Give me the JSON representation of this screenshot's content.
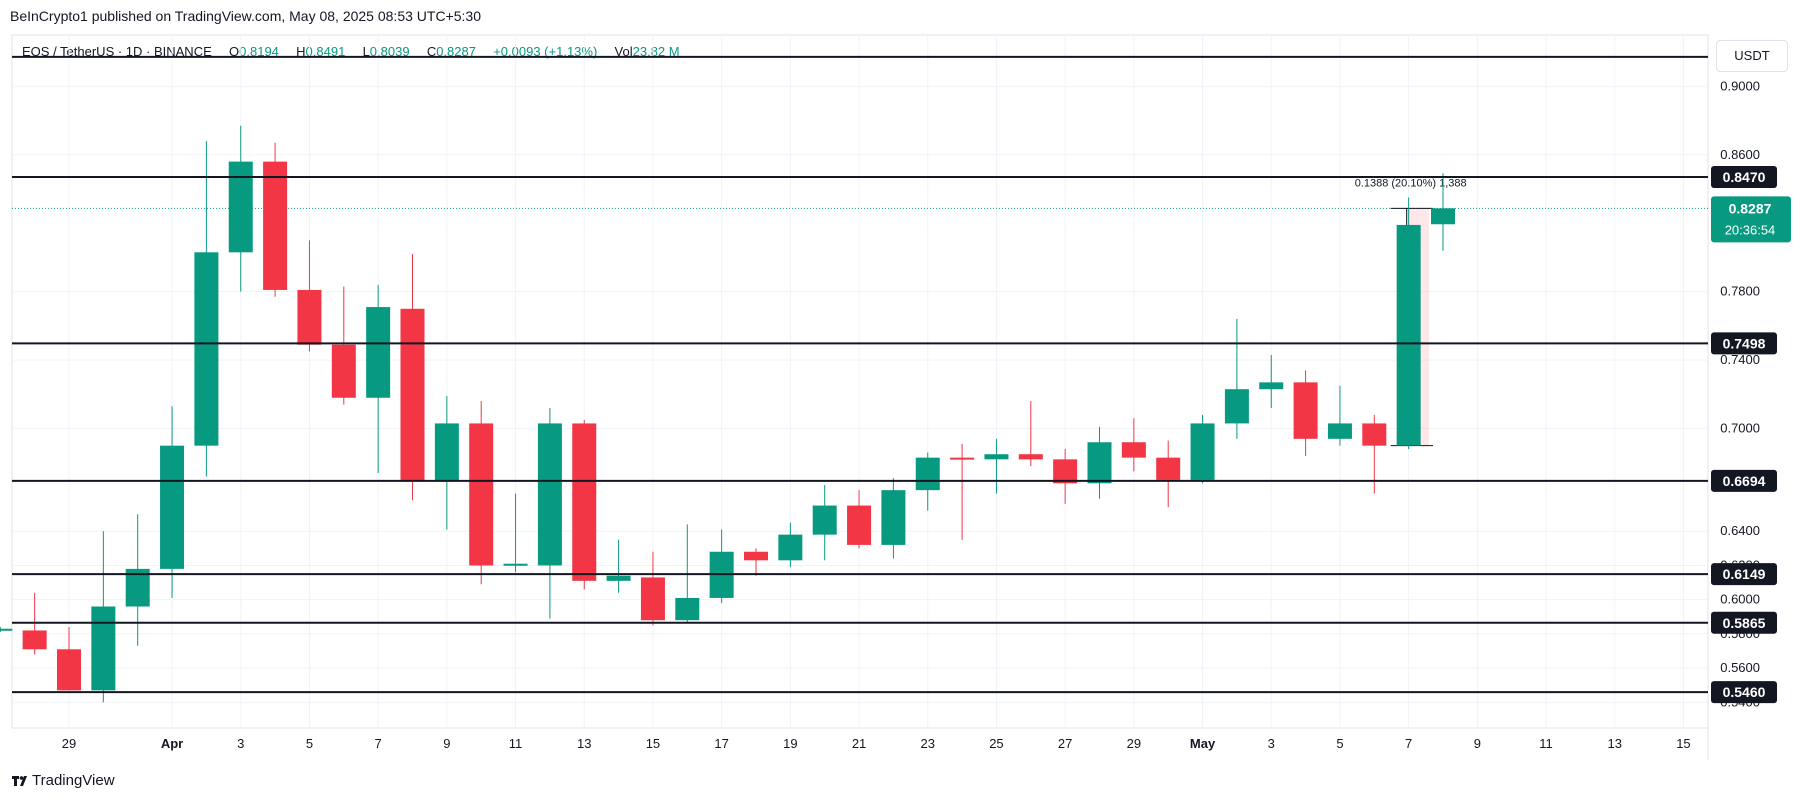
{
  "header": {
    "published": "BeInCrypto1 published on TradingView.com, May 08, 2025 08:53 UTC+5:30"
  },
  "symbol": {
    "pair": "EOS / TetherUS · 1D · BINANCE",
    "o_label": "O",
    "o": "0.8194",
    "h_label": "H",
    "h": "0.8491",
    "l_label": "L",
    "l": "0.8039",
    "c_label": "C",
    "c": "0.8287",
    "change": "+0.0093 (+1.13%)",
    "vol_label": "Vol",
    "vol": "23.82 M"
  },
  "currency": "USDT",
  "footer": {
    "brand": "TradingView"
  },
  "colors": {
    "up": "#089981",
    "down": "#f23645",
    "grid": "#f0f3fa",
    "line": "#131722"
  },
  "chart_data": {
    "type": "candlestick",
    "ylim": [
      0.525,
      0.93
    ],
    "y_ticks": [
      "0.9000",
      "0.8600",
      "0.7800",
      "0.7400",
      "0.7000",
      "0.6400",
      "0.6200",
      "0.6000",
      "0.5800",
      "0.5600",
      "0.5400"
    ],
    "x_ticks": [
      {
        "date": "2025-03-29",
        "label": "29"
      },
      {
        "date": "2025-04-01",
        "label": "Apr"
      },
      {
        "date": "2025-04-03",
        "label": "3"
      },
      {
        "date": "2025-04-05",
        "label": "5"
      },
      {
        "date": "2025-04-07",
        "label": "7"
      },
      {
        "date": "2025-04-09",
        "label": "9"
      },
      {
        "date": "2025-04-11",
        "label": "11"
      },
      {
        "date": "2025-04-13",
        "label": "13"
      },
      {
        "date": "2025-04-15",
        "label": "15"
      },
      {
        "date": "2025-04-17",
        "label": "17"
      },
      {
        "date": "2025-04-19",
        "label": "19"
      },
      {
        "date": "2025-04-21",
        "label": "21"
      },
      {
        "date": "2025-04-23",
        "label": "23"
      },
      {
        "date": "2025-04-25",
        "label": "25"
      },
      {
        "date": "2025-04-27",
        "label": "27"
      },
      {
        "date": "2025-04-29",
        "label": "29"
      },
      {
        "date": "2025-05-01",
        "label": "May"
      },
      {
        "date": "2025-05-03",
        "label": "3"
      },
      {
        "date": "2025-05-05",
        "label": "5"
      },
      {
        "date": "2025-05-07",
        "label": "7"
      },
      {
        "date": "2025-05-09",
        "label": "9"
      },
      {
        "date": "2025-05-11",
        "label": "11"
      },
      {
        "date": "2025-05-13",
        "label": "13"
      },
      {
        "date": "2025-05-15",
        "label": "15"
      }
    ],
    "candles": [
      {
        "date": "2025-03-27",
        "o": 0.582,
        "h": 0.584,
        "l": 0.581,
        "c": 0.583
      },
      {
        "date": "2025-03-28",
        "o": 0.582,
        "h": 0.604,
        "l": 0.568,
        "c": 0.571
      },
      {
        "date": "2025-03-29",
        "o": 0.571,
        "h": 0.584,
        "l": 0.547,
        "c": 0.547
      },
      {
        "date": "2025-03-30",
        "o": 0.547,
        "h": 0.64,
        "l": 0.54,
        "c": 0.596
      },
      {
        "date": "2025-03-31",
        "o": 0.596,
        "h": 0.65,
        "l": 0.573,
        "c": 0.618
      },
      {
        "date": "2025-04-01",
        "o": 0.618,
        "h": 0.713,
        "l": 0.601,
        "c": 0.69
      },
      {
        "date": "2025-04-02",
        "o": 0.69,
        "h": 0.868,
        "l": 0.672,
        "c": 0.803
      },
      {
        "date": "2025-04-03",
        "o": 0.803,
        "h": 0.877,
        "l": 0.78,
        "c": 0.856
      },
      {
        "date": "2025-04-04",
        "o": 0.856,
        "h": 0.867,
        "l": 0.777,
        "c": 0.781
      },
      {
        "date": "2025-04-05",
        "o": 0.781,
        "h": 0.81,
        "l": 0.745,
        "c": 0.749
      },
      {
        "date": "2025-04-06",
        "o": 0.749,
        "h": 0.783,
        "l": 0.714,
        "c": 0.718
      },
      {
        "date": "2025-04-07",
        "o": 0.718,
        "h": 0.784,
        "l": 0.674,
        "c": 0.771
      },
      {
        "date": "2025-04-08",
        "o": 0.77,
        "h": 0.802,
        "l": 0.658,
        "c": 0.669
      },
      {
        "date": "2025-04-09",
        "o": 0.669,
        "h": 0.719,
        "l": 0.641,
        "c": 0.703
      },
      {
        "date": "2025-04-10",
        "o": 0.703,
        "h": 0.716,
        "l": 0.609,
        "c": 0.62
      },
      {
        "date": "2025-04-11",
        "o": 0.62,
        "h": 0.662,
        "l": 0.616,
        "c": 0.621
      },
      {
        "date": "2025-04-12",
        "o": 0.62,
        "h": 0.712,
        "l": 0.589,
        "c": 0.703
      },
      {
        "date": "2025-04-13",
        "o": 0.703,
        "h": 0.705,
        "l": 0.606,
        "c": 0.611
      },
      {
        "date": "2025-04-14",
        "o": 0.611,
        "h": 0.635,
        "l": 0.604,
        "c": 0.614
      },
      {
        "date": "2025-04-15",
        "o": 0.613,
        "h": 0.628,
        "l": 0.585,
        "c": 0.588
      },
      {
        "date": "2025-04-16",
        "o": 0.588,
        "h": 0.644,
        "l": 0.587,
        "c": 0.601
      },
      {
        "date": "2025-04-17",
        "o": 0.601,
        "h": 0.641,
        "l": 0.598,
        "c": 0.628
      },
      {
        "date": "2025-04-18",
        "o": 0.628,
        "h": 0.63,
        "l": 0.614,
        "c": 0.623
      },
      {
        "date": "2025-04-19",
        "o": 0.623,
        "h": 0.645,
        "l": 0.619,
        "c": 0.638
      },
      {
        "date": "2025-04-20",
        "o": 0.638,
        "h": 0.667,
        "l": 0.623,
        "c": 0.655
      },
      {
        "date": "2025-04-21",
        "o": 0.655,
        "h": 0.664,
        "l": 0.63,
        "c": 0.632
      },
      {
        "date": "2025-04-22",
        "o": 0.632,
        "h": 0.671,
        "l": 0.624,
        "c": 0.664
      },
      {
        "date": "2025-04-23",
        "o": 0.664,
        "h": 0.686,
        "l": 0.652,
        "c": 0.683
      },
      {
        "date": "2025-04-24",
        "o": 0.683,
        "h": 0.691,
        "l": 0.635,
        "c": 0.682
      },
      {
        "date": "2025-04-25",
        "o": 0.682,
        "h": 0.694,
        "l": 0.662,
        "c": 0.685
      },
      {
        "date": "2025-04-26",
        "o": 0.685,
        "h": 0.716,
        "l": 0.678,
        "c": 0.682
      },
      {
        "date": "2025-04-27",
        "o": 0.682,
        "h": 0.688,
        "l": 0.656,
        "c": 0.668
      },
      {
        "date": "2025-04-28",
        "o": 0.668,
        "h": 0.701,
        "l": 0.659,
        "c": 0.692
      },
      {
        "date": "2025-04-29",
        "o": 0.692,
        "h": 0.706,
        "l": 0.675,
        "c": 0.683
      },
      {
        "date": "2025-04-30",
        "o": 0.683,
        "h": 0.693,
        "l": 0.654,
        "c": 0.67
      },
      {
        "date": "2025-05-01",
        "o": 0.67,
        "h": 0.708,
        "l": 0.668,
        "c": 0.703
      },
      {
        "date": "2025-05-02",
        "o": 0.703,
        "h": 0.764,
        "l": 0.694,
        "c": 0.723
      },
      {
        "date": "2025-05-03",
        "o": 0.723,
        "h": 0.743,
        "l": 0.712,
        "c": 0.727
      },
      {
        "date": "2025-05-04",
        "o": 0.727,
        "h": 0.734,
        "l": 0.684,
        "c": 0.694
      },
      {
        "date": "2025-05-05",
        "o": 0.694,
        "h": 0.725,
        "l": 0.69,
        "c": 0.703
      },
      {
        "date": "2025-05-06",
        "o": 0.703,
        "h": 0.708,
        "l": 0.662,
        "c": 0.69
      },
      {
        "date": "2025-05-07",
        "o": 0.69,
        "h": 0.835,
        "l": 0.688,
        "c": 0.819
      },
      {
        "date": "2025-05-08",
        "o": 0.8194,
        "h": 0.8491,
        "l": 0.8039,
        "c": 0.8287
      }
    ],
    "levels": [
      {
        "price": 0.9172,
        "label": ""
      },
      {
        "price": 0.847,
        "label": "0.8470"
      },
      {
        "price": 0.7498,
        "label": "0.7498"
      },
      {
        "price": 0.6694,
        "label": "0.6694"
      },
      {
        "price": 0.6149,
        "label": "0.6149"
      },
      {
        "price": 0.5865,
        "label": "0.5865"
      },
      {
        "price": 0.546,
        "label": "0.5460"
      }
    ],
    "last_price": {
      "price": 0.8287,
      "label": "0.8287",
      "countdown": "20:36:54"
    },
    "measure": {
      "start_date": "2025-05-07",
      "end_date": "2025-05-08",
      "from": 0.69,
      "to": 0.8287,
      "label": "0.1388 (20.10%) 1,388"
    }
  }
}
